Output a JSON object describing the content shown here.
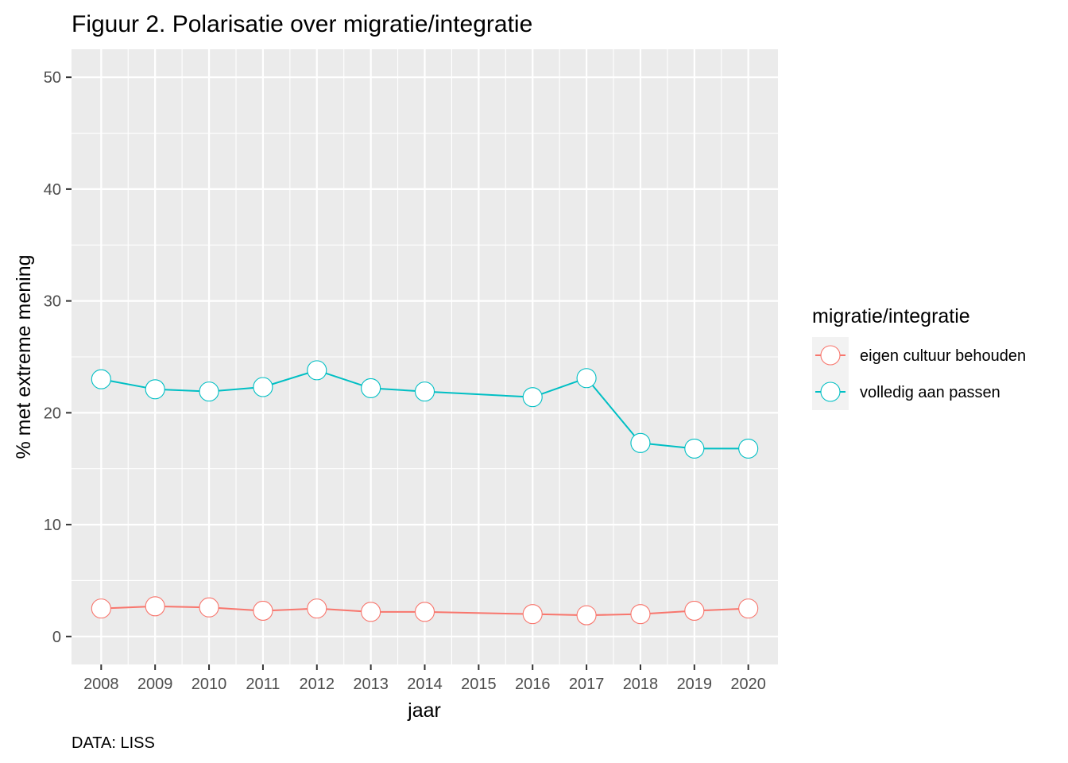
{
  "chart_data": {
    "type": "line",
    "title": "Figuur 2. Polarisatie over migratie/integratie",
    "xlabel": "jaar",
    "ylabel": "% met extreme mening",
    "caption": "DATA: LISS",
    "x": [
      2008,
      2009,
      2010,
      2011,
      2012,
      2013,
      2014,
      2015,
      2016,
      2017,
      2018,
      2019,
      2020
    ],
    "x_tick_labels": [
      "2008",
      "2009",
      "2010",
      "2011",
      "2012",
      "2013",
      "2014",
      "2015",
      "2016",
      "2017",
      "2018",
      "2019",
      "2020"
    ],
    "xlim": [
      2007.45,
      2020.55
    ],
    "ylim": [
      -2.5,
      52.5
    ],
    "y_ticks": [
      0,
      10,
      20,
      30,
      40,
      50
    ],
    "y_tick_labels": [
      "0",
      "10",
      "20",
      "30",
      "40",
      "50"
    ],
    "grid": true,
    "legend": {
      "title": "migratie/integratie",
      "position": "right"
    },
    "series": [
      {
        "name": "eigen cultuur behouden",
        "color": "#F8766D",
        "points": [
          {
            "x": 2008,
            "y": 2.5
          },
          {
            "x": 2009,
            "y": 2.7
          },
          {
            "x": 2010,
            "y": 2.6
          },
          {
            "x": 2011,
            "y": 2.3
          },
          {
            "x": 2012,
            "y": 2.5
          },
          {
            "x": 2013,
            "y": 2.2
          },
          {
            "x": 2014,
            "y": 2.2
          },
          {
            "x": 2016,
            "y": 2.0
          },
          {
            "x": 2017,
            "y": 1.9
          },
          {
            "x": 2018,
            "y": 2.0
          },
          {
            "x": 2019,
            "y": 2.3
          },
          {
            "x": 2020,
            "y": 2.5
          }
        ]
      },
      {
        "name": "volledig aan passen",
        "color": "#00BFC4",
        "points": [
          {
            "x": 2008,
            "y": 23.0
          },
          {
            "x": 2009,
            "y": 22.1
          },
          {
            "x": 2010,
            "y": 21.9
          },
          {
            "x": 2011,
            "y": 22.3
          },
          {
            "x": 2012,
            "y": 23.8
          },
          {
            "x": 2013,
            "y": 22.2
          },
          {
            "x": 2014,
            "y": 21.9
          },
          {
            "x": 2016,
            "y": 21.4
          },
          {
            "x": 2017,
            "y": 23.1
          },
          {
            "x": 2018,
            "y": 17.3
          },
          {
            "x": 2019,
            "y": 16.8
          },
          {
            "x": 2020,
            "y": 16.8
          }
        ]
      }
    ]
  }
}
